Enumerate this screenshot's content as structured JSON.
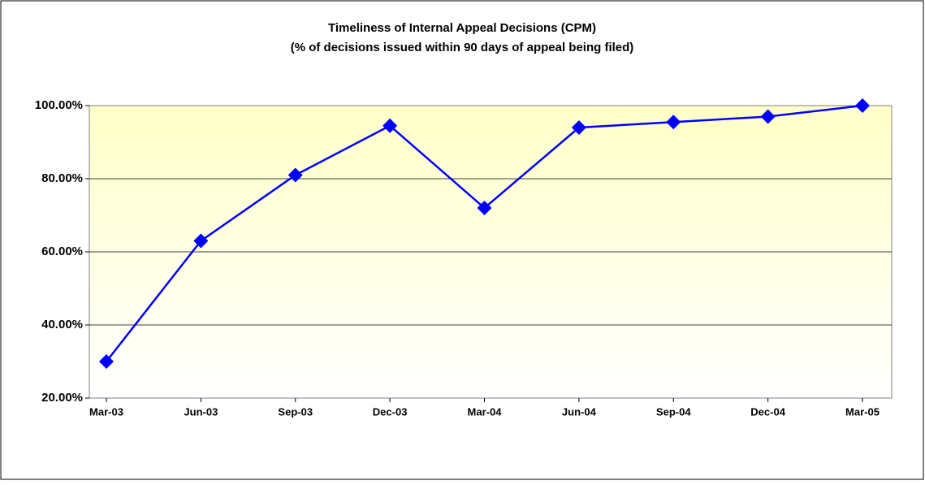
{
  "chart_data": {
    "type": "line",
    "title": "Timeliness of Internal Appeal Decisions (CPM)",
    "subtitle": "(% of decisions issued within 90 days of appeal being filed)",
    "categories": [
      "Mar-03",
      "Jun-03",
      "Sep-03",
      "Dec-03",
      "Mar-04",
      "Jun-04",
      "Sep-04",
      "Dec-04",
      "Mar-05"
    ],
    "series": [
      {
        "name": "Timeliness",
        "color": "#0000ff",
        "values": [
          30,
          63,
          81,
          94.5,
          72,
          94,
          95.5,
          97,
          100
        ]
      }
    ],
    "ylim": [
      20,
      100
    ],
    "yticks": [
      {
        "value": 20,
        "label": "20.00%"
      },
      {
        "value": 40,
        "label": "40.00%"
      },
      {
        "value": 60,
        "label": "60.00%"
      },
      {
        "value": 80,
        "label": "80.00%"
      },
      {
        "value": 100,
        "label": "100.00%"
      }
    ],
    "grid": true
  }
}
